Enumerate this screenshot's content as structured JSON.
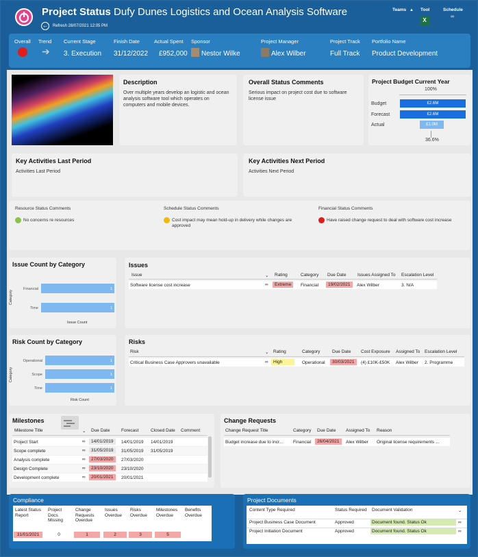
{
  "header": {
    "title_bold": "Project Status",
    "title_rest": "Dufy Dunes Logistics and Ocean Analysis Software",
    "refresh": "Refresh 28/07/2021 12:05 PM",
    "links": [
      "Teams",
      "Tool",
      "Schedule"
    ]
  },
  "info": {
    "labels": [
      "Overall",
      "Trend",
      "Current Stage",
      "Finish Date",
      "Actual Spent",
      "Sponsor",
      "Project Manager",
      "Project Track",
      "Portfolio Name"
    ],
    "stage": "3. Execution",
    "finish": "31/12/2022",
    "spent": "£952,000",
    "sponsor": "Nestor Wilke",
    "pm": "Alex Wilber",
    "track": "Full Track",
    "portfolio": "Product Development"
  },
  "description": {
    "title": "Description",
    "text": "Over multiple years develop an logistic and ocean analysis software tool which operates on computers and mobile devices."
  },
  "status_comments": {
    "title": "Overall Status Comments",
    "text": "Serious impact on project cost due to software license issue"
  },
  "budget": {
    "title": "Project Budget Current Year",
    "top": "100%",
    "bottom": "36.6%",
    "rows": [
      {
        "label": "Budget",
        "value": "£2.6M",
        "frac": 1
      },
      {
        "label": "Forecast",
        "value": "£2.6M",
        "frac": 1
      },
      {
        "label": "Actual",
        "value": "£1.0M",
        "frac": 0.366
      }
    ],
    "colors": {
      "budget": "#1a6fe0",
      "actual": "#7db8f0"
    }
  },
  "activities": {
    "last_title": "Key Activities Last Period",
    "last_text": "Activities Last Period",
    "next_title": "Key Activities Next Period",
    "next_text": "Activities Next Period"
  },
  "rag": {
    "resource_title": "Resource Status Comments",
    "resource_text": "No concerns re resources",
    "schedule_title": "Schedule Status Comments",
    "schedule_text": "Cost impact may mean hold-up in delivery while changes are approved",
    "financial_title": "Financial Status Comments",
    "financial_text": "Have raised change request to deal with software cost increase",
    "colors": {
      "green": "#8bc34a",
      "amber": "#f5b800",
      "red": "#e21b1b"
    }
  },
  "issue_chart": {
    "title": "Issue Count by Category",
    "ylabel": "Category",
    "xlabel": "Issue Count"
  },
  "risk_chart": {
    "title": "Risk Count by Category",
    "ylabel": "Category",
    "xlabel": "Risk Count"
  },
  "chart_data": [
    {
      "type": "bar",
      "title": "Issue Count by Category",
      "categories": [
        "Financial",
        "Time"
      ],
      "values": [
        1,
        1
      ],
      "xlabel": "Issue Count",
      "ylabel": "Category"
    },
    {
      "type": "bar",
      "title": "Risk Count by Category",
      "categories": [
        "Operational",
        "Scope",
        "Time"
      ],
      "values": [
        1,
        1,
        1
      ],
      "xlabel": "Risk Count",
      "ylabel": "Category"
    }
  ],
  "issues": {
    "title": "Issues",
    "headers": [
      "Issue",
      "Rating",
      "Category",
      "Due Date",
      "Issues Assigned To",
      "Escalation Level"
    ],
    "row": [
      "Software license cost increase",
      "Extreme",
      "Financial",
      "19/02/2021",
      "Alex Wilber",
      "3. N/A"
    ]
  },
  "risks": {
    "title": "Risks",
    "headers": [
      "Risk",
      "Rating",
      "Category",
      "Due Date",
      "Cost Exposure",
      "Assigned To",
      "Escalation Level"
    ],
    "row": [
      "Critical Business Case Approvers unavailable",
      "High",
      "Operational",
      "30/03/2021",
      "(4) £10K-£50K",
      "Alex Wilber",
      "2. Programme"
    ]
  },
  "milestones": {
    "title": "Milestones",
    "headers": [
      "Milestone Title",
      "Due Date",
      "Forecast",
      "Closed Date",
      "Comment"
    ],
    "rows": [
      [
        "Project Start",
        "14/01/2019",
        "14/01/2019",
        "14/01/2019",
        ""
      ],
      [
        "Scope complete",
        "31/05/2019",
        "31/05/2019",
        "31/05/2019",
        ""
      ],
      [
        "Analysis complete",
        "27/03/2020",
        "27/03/2020",
        "",
        ""
      ],
      [
        "Design Complete",
        "23/10/2020",
        "23/10/2020",
        "",
        ""
      ],
      [
        "Development complete",
        "20/01/2021",
        "20/01/2021",
        "",
        ""
      ]
    ]
  },
  "changes": {
    "title": "Change Requests",
    "headers": [
      "Change Request Title",
      "Category",
      "Due Date",
      "Assigned To",
      "Reason"
    ],
    "row": [
      "Budget increase due to incr...",
      "Financial",
      "26/04/2021",
      "Alex Wilber",
      "Original license requirements ..."
    ]
  },
  "compliance": {
    "title": "Compliance",
    "headers": [
      "Latest Status Report",
      "Project Docs Missing",
      "Change Requests Overdue",
      "Issues Overdue",
      "Risks Overdue",
      "Milestones Overdue",
      "Benefits Overdue"
    ],
    "values": [
      "31/01/2021",
      "0",
      "1",
      "2",
      "3",
      "5",
      ""
    ]
  },
  "documents": {
    "title": "Project Documents",
    "headers": [
      "Content Type Required",
      "Status Required",
      "Document Validation"
    ],
    "rows": [
      [
        "Project Business Case Document",
        "Approved",
        "Document found. Status Ok"
      ],
      [
        "Project Initiation Document",
        "Approved",
        "Document found. Status Ok"
      ]
    ]
  }
}
